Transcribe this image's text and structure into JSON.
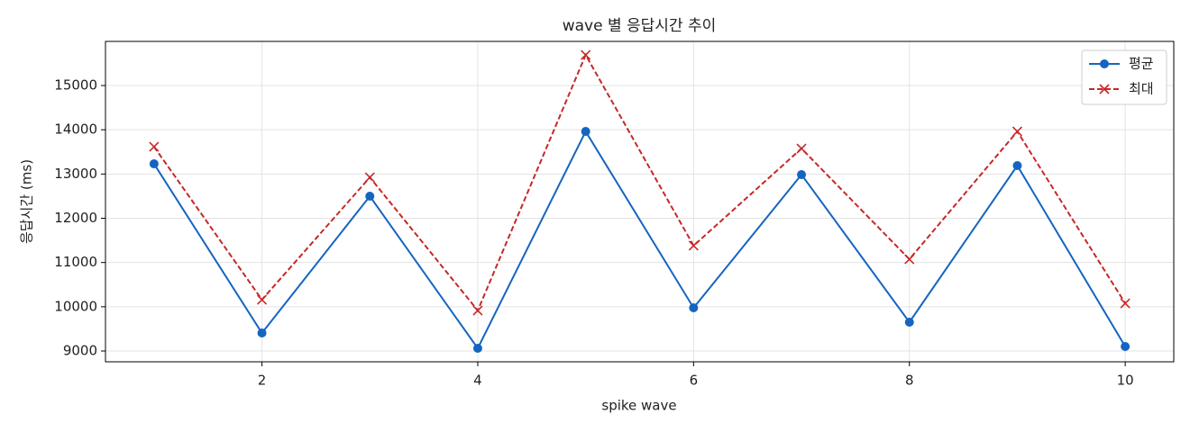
{
  "chart_data": {
    "type": "line",
    "title": "wave 별 응답시간 추이",
    "x_label": "spike wave",
    "y_label": "응답시간 (ms)",
    "x": [
      1,
      2,
      3,
      4,
      5,
      6,
      7,
      8,
      9,
      10
    ],
    "series": [
      {
        "name": "평균",
        "color": "#1565c0",
        "marker": "o",
        "dashed": false,
        "values": [
          13230,
          9407,
          12498,
          9061,
          13962,
          9976,
          12986,
          9651,
          13190,
          9102
        ]
      },
      {
        "name": "최대",
        "color": "#c62828",
        "marker": "x",
        "dashed": true,
        "values": [
          13617,
          10159,
          12925,
          9915,
          15691,
          11380,
          13576,
          11074,
          13962,
          10078
        ]
      }
    ],
    "xlim": [
      0.55,
      10.45
    ],
    "ylim": [
      8756,
      15997
    ],
    "xticks": [
      2,
      4,
      6,
      8,
      10
    ],
    "yticks": [
      9000,
      10000,
      11000,
      12000,
      13000,
      14000,
      15000
    ],
    "grid": true,
    "legend": "upper right"
  }
}
